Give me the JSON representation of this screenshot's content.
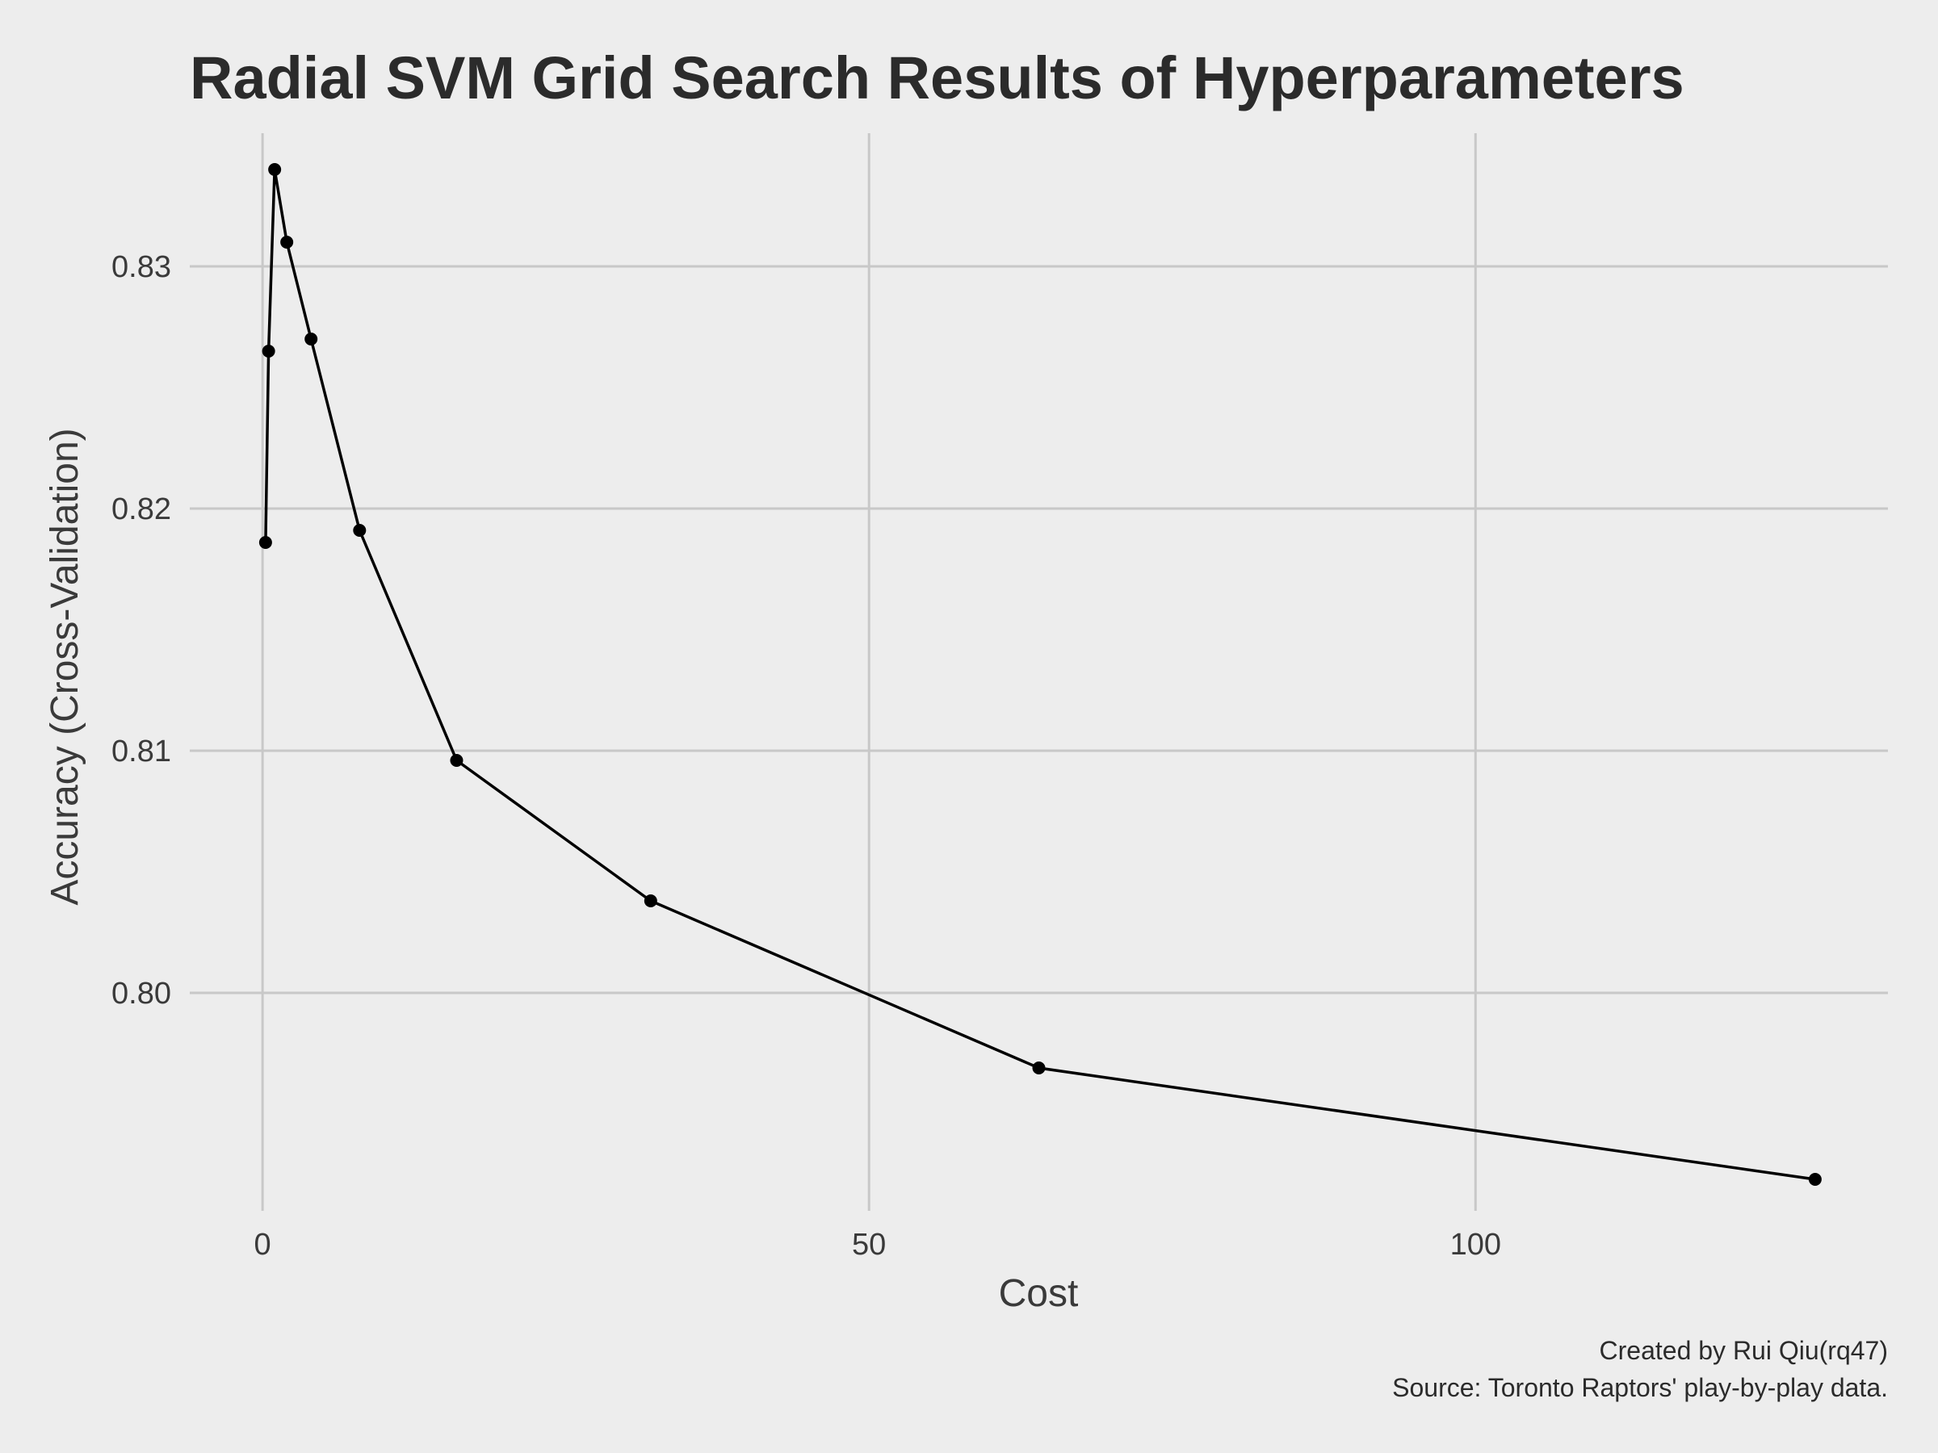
{
  "chart_data": {
    "type": "line",
    "title": "Radial SVM Grid Search Results of Hyperparameters",
    "xlabel": "Cost",
    "ylabel": "Accuracy (Cross-Validation)",
    "x_ticks": [
      0,
      50,
      100
    ],
    "y_ticks": [
      0.8,
      0.81,
      0.82,
      0.83
    ],
    "y_tick_labels": [
      "0.80",
      "0.81",
      "0.82",
      "0.83"
    ],
    "xlim": [
      -6,
      134
    ],
    "ylim": [
      0.791,
      0.8355
    ],
    "grid": true,
    "series": [
      {
        "x": [
          0.25,
          0.5,
          1,
          2,
          4,
          8,
          16,
          32,
          64,
          128
        ],
        "y": [
          0.8186,
          0.8265,
          0.834,
          0.831,
          0.827,
          0.8191,
          0.8096,
          0.8038,
          0.7969,
          0.7923
        ],
        "color": "#000000"
      }
    ],
    "caption": [
      "Created by Rui Qiu(rq47)",
      "Source: Toronto Raptors' play-by-play data."
    ]
  }
}
